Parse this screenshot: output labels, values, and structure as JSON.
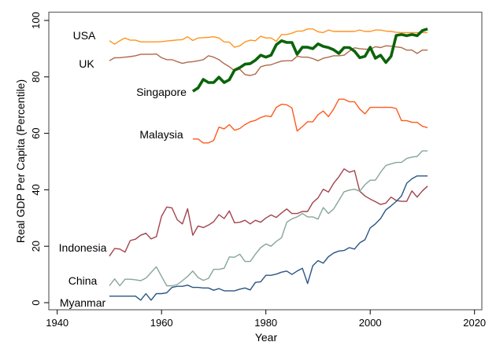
{
  "chart_data": {
    "type": "line",
    "title": "",
    "xlabel": "Year",
    "ylabel": "Real GDP Per Capita (Percentile)",
    "xlim": [
      1940,
      2020
    ],
    "ylim": [
      0,
      100
    ],
    "xticks": [
      "1940",
      "1960",
      "1980",
      "2000",
      "2020"
    ],
    "yticks": [
      "0",
      "20",
      "40",
      "60",
      "80",
      "100"
    ],
    "grid": false,
    "legend": "none (series labelled directly on the chart)",
    "series": [
      {
        "name": "USA",
        "color": "#ff9422",
        "start_year": 1950,
        "width": "thin",
        "values": [
          92.8,
          91.6,
          92.8,
          93.8,
          93.0,
          93.0,
          92.4,
          92.4,
          92.4,
          92.4,
          92.5,
          92.7,
          92.9,
          93.1,
          93.2,
          94.2,
          92.9,
          93.8,
          93.9,
          94.0,
          94.2,
          93.8,
          92.4,
          92.3,
          90.5,
          91.0,
          92.4,
          93.0,
          92.8,
          94.4,
          93.8,
          93.8,
          92.6,
          95.0,
          95.0,
          95.5,
          96.2,
          96.2,
          97.0,
          97.0,
          96.0,
          95.7,
          96.6,
          96.1,
          96.1,
          96.1,
          96.1,
          96.1,
          96.6,
          96.1,
          96.1,
          96.6,
          96.6,
          96.2,
          96.1,
          95.8,
          95.7,
          95.7,
          95.7,
          95.7,
          95.7,
          95.7
        ]
      },
      {
        "name": "UK",
        "color": "#b0694a",
        "start_year": 1950,
        "width": "thin",
        "values": [
          85.7,
          86.8,
          86.8,
          87.0,
          87.2,
          87.5,
          88.0,
          88.0,
          88.0,
          88.1,
          86.8,
          86.1,
          86.1,
          85.4,
          84.8,
          85.2,
          85.4,
          85.7,
          86.1,
          87.5,
          87.0,
          86.1,
          84.7,
          83.6,
          82.2,
          82.7,
          80.8,
          80.5,
          81.0,
          83.6,
          84.1,
          84.3,
          85.0,
          85.6,
          85.7,
          85.7,
          87.3,
          87.0,
          87.0,
          86.5,
          85.7,
          86.6,
          87.0,
          87.5,
          87.5,
          87.7,
          89.1,
          90.3,
          90.0,
          89.8,
          89.8,
          90.7,
          90.4,
          91.0,
          90.9,
          90.6,
          90.4,
          89.5,
          89.5,
          88.3,
          89.5,
          89.5
        ]
      },
      {
        "name": "Singapore",
        "color": "#0a640a",
        "start_year": 1966,
        "width": "thick",
        "values": [
          74.9,
          76.1,
          79.1,
          78.0,
          78.0,
          79.9,
          78.0,
          79.0,
          82.4,
          83.3,
          84.5,
          84.7,
          85.9,
          87.7,
          87.0,
          87.7,
          91.4,
          92.8,
          92.2,
          92.2,
          88.0,
          90.5,
          90.5,
          90.0,
          91.7,
          90.8,
          90.4,
          89.6,
          88.3,
          90.4,
          90.4,
          89.1,
          86.8,
          87.3,
          90.5,
          86.6,
          87.7,
          85.1,
          87.3,
          94.7,
          95.0,
          94.6,
          95.0,
          94.6,
          96.4,
          97.0
        ]
      },
      {
        "name": "Malaysia",
        "color": "#ff5a1e",
        "start_year": 1966,
        "width": "thin",
        "values": [
          58.0,
          58.0,
          56.6,
          56.6,
          57.5,
          62.2,
          61.6,
          63.1,
          61.1,
          61.7,
          63.1,
          64.1,
          64.6,
          65.6,
          66.2,
          65.9,
          69.2,
          70.3,
          70.1,
          69.0,
          60.8,
          62.4,
          64.1,
          64.1,
          66.6,
          67.9,
          65.9,
          68.6,
          72.1,
          72.1,
          71.2,
          71.2,
          68.6,
          66.9,
          69.2,
          69.2,
          69.2,
          69.2,
          69.2,
          68.8,
          64.5,
          64.5,
          63.9,
          63.9,
          62.5,
          62.0
        ]
      },
      {
        "name": "Indonesia",
        "color": "#a2424c",
        "start_year": 1950,
        "width": "thin",
        "values": [
          16.5,
          19.2,
          19.0,
          17.9,
          22.0,
          22.5,
          23.9,
          24.6,
          22.6,
          23.4,
          30.6,
          33.9,
          33.6,
          29.4,
          27.9,
          33.3,
          23.9,
          27.2,
          26.6,
          27.5,
          28.7,
          31.2,
          29.8,
          32.5,
          28.3,
          28.5,
          29.2,
          27.9,
          29.2,
          28.5,
          30.0,
          31.1,
          30.2,
          31.8,
          33.2,
          31.6,
          31.6,
          32.3,
          32.3,
          35.5,
          37.1,
          40.2,
          39.2,
          42.3,
          44.6,
          47.4,
          46.2,
          46.8,
          39.5,
          37.8,
          36.7,
          35.8,
          34.8,
          35.3,
          37.4,
          36.2,
          35.9,
          35.9,
          39.6,
          37.4,
          39.6,
          41.3
        ]
      },
      {
        "name": "China",
        "color": "#86a698",
        "start_year": 1950,
        "width": "thin",
        "values": [
          6.0,
          8.4,
          6.0,
          8.3,
          8.3,
          8.1,
          7.8,
          8.7,
          10.7,
          12.7,
          9.3,
          6.0,
          6.0,
          6.4,
          7.8,
          9.3,
          11.2,
          8.9,
          7.9,
          8.6,
          11.8,
          11.8,
          12.2,
          16.2,
          16.1,
          17.2,
          14.6,
          14.6,
          17.2,
          19.5,
          20.8,
          20.0,
          21.7,
          23.0,
          28.5,
          29.7,
          30.4,
          31.6,
          30.4,
          30.4,
          29.6,
          33.7,
          31.6,
          33.2,
          36.2,
          39.3,
          39.9,
          40.2,
          39.5,
          41.8,
          43.4,
          43.4,
          46.2,
          48.6,
          49.2,
          49.7,
          49.7,
          51.1,
          51.6,
          51.8,
          53.8,
          53.8
        ]
      },
      {
        "name": "Myanmar",
        "color": "#2a5582",
        "start_year": 1950,
        "width": "thin",
        "values": [
          2.3,
          2.3,
          2.3,
          2.3,
          2.3,
          2.3,
          0.9,
          3.2,
          0.9,
          3.2,
          3.2,
          3.5,
          5.4,
          5.8,
          5.8,
          6.2,
          5.4,
          5.4,
          5.2,
          5.2,
          4.4,
          5.0,
          4.2,
          4.2,
          4.2,
          4.8,
          5.2,
          4.5,
          7.2,
          7.4,
          9.7,
          9.7,
          10.1,
          10.8,
          11.2,
          10.0,
          11.2,
          12.2,
          6.8,
          13.1,
          14.9,
          14.0,
          16.3,
          17.6,
          18.3,
          18.5,
          19.5,
          19.0,
          21.2,
          22.3,
          26.5,
          27.9,
          29.8,
          32.9,
          34.3,
          35.9,
          37.8,
          42.3,
          43.9,
          44.9,
          44.9,
          44.9
        ]
      }
    ]
  }
}
